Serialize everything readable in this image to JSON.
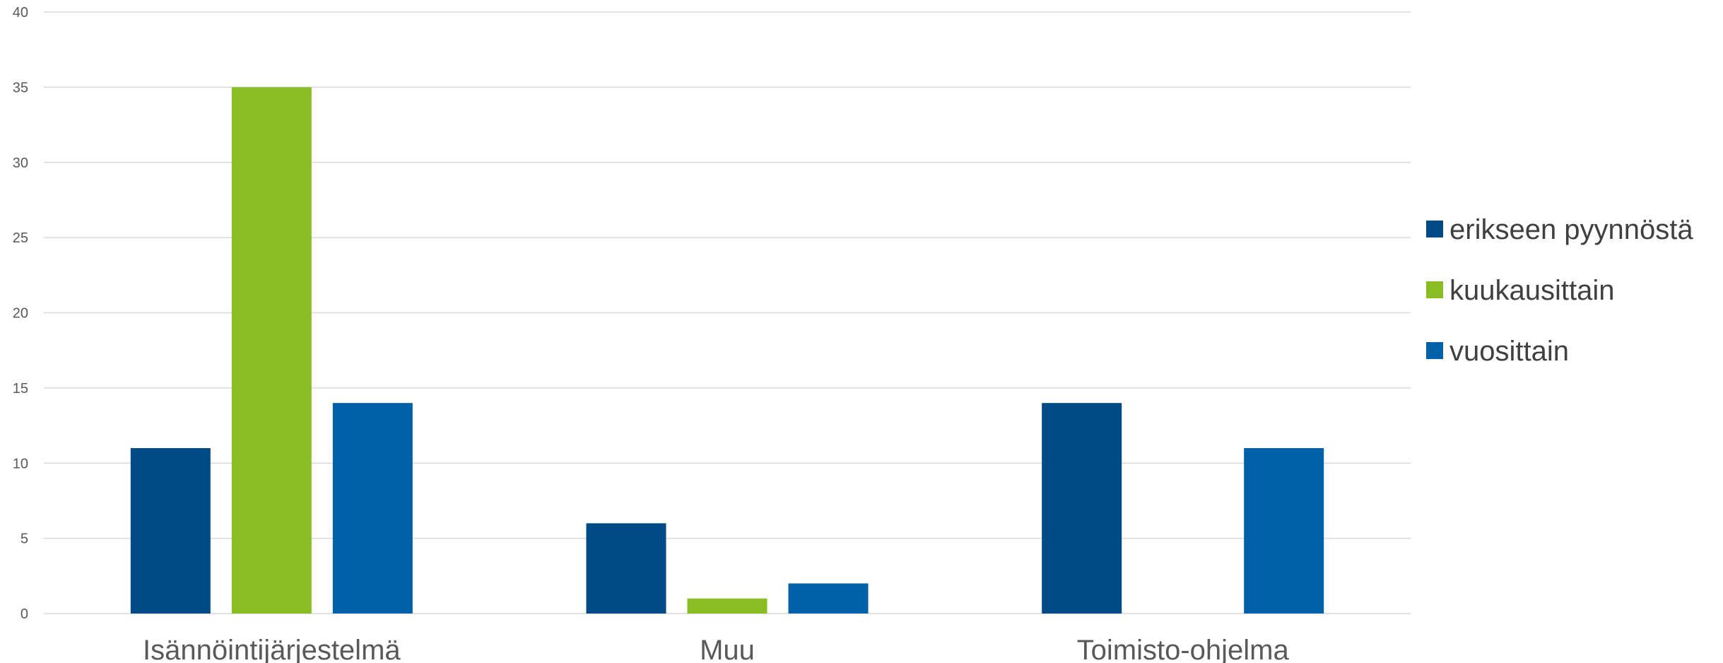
{
  "chart_data": {
    "type": "bar",
    "categories": [
      "Isännöintijärjestelmä",
      "Muu",
      "Toimisto-ohjelma"
    ],
    "series": [
      {
        "name": "erikseen pyynnöstä",
        "values": [
          11,
          6,
          14
        ],
        "color": "#004B87"
      },
      {
        "name": "kuukausittain",
        "values": [
          35,
          1,
          0
        ],
        "color": "#8ABD24"
      },
      {
        "name": "vuosittain",
        "values": [
          14,
          2,
          11
        ],
        "color": "#0061A8"
      }
    ],
    "ylim": [
      0,
      40
    ],
    "yticks": [
      0,
      5,
      10,
      15,
      20,
      25,
      30,
      35,
      40
    ],
    "grid": true,
    "legend_position": "right",
    "gridline_color": "#D9D9D9"
  }
}
